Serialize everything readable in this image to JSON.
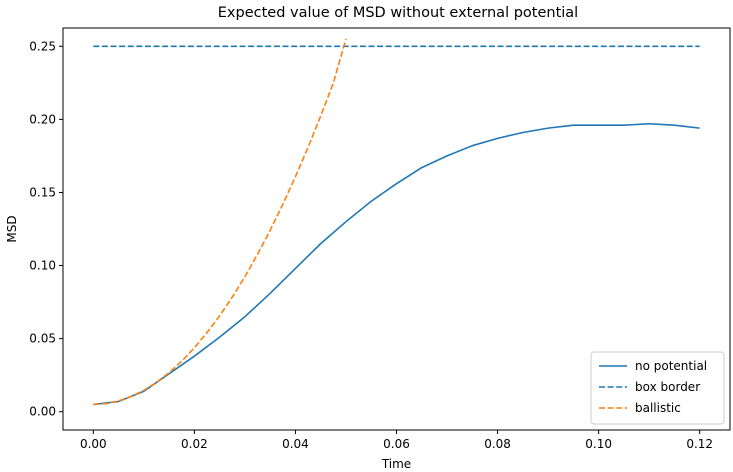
{
  "chart_data": {
    "type": "line",
    "title": "Expected value of MSD without external potential",
    "xlabel": "Time",
    "ylabel": "MSD",
    "xlim": [
      -0.006,
      0.126
    ],
    "ylim": [
      -0.0125,
      0.2625
    ],
    "xticks": [
      0.0,
      0.02,
      0.04,
      0.06,
      0.08,
      0.1,
      0.12
    ],
    "xtick_labels": [
      "0.00",
      "0.02",
      "0.04",
      "0.06",
      "0.08",
      "0.10",
      "0.12"
    ],
    "yticks": [
      0.0,
      0.05,
      0.1,
      0.15,
      0.2,
      0.25
    ],
    "ytick_labels": [
      "0.00",
      "0.05",
      "0.10",
      "0.15",
      "0.20",
      "0.25"
    ],
    "grid": false,
    "legend_position": "bottom-right",
    "series": [
      {
        "name": "no potential",
        "style": "solid",
        "color": "#1f77b4",
        "x": [
          0.0,
          0.005,
          0.01,
          0.015,
          0.02,
          0.025,
          0.03,
          0.035,
          0.04,
          0.045,
          0.05,
          0.055,
          0.06,
          0.065,
          0.07,
          0.075,
          0.08,
          0.085,
          0.09,
          0.095,
          0.1,
          0.105,
          0.11,
          0.115,
          0.12
        ],
        "y": [
          0.005,
          0.007,
          0.014,
          0.026,
          0.038,
          0.051,
          0.065,
          0.081,
          0.098,
          0.115,
          0.13,
          0.144,
          0.156,
          0.167,
          0.175,
          0.182,
          0.187,
          0.191,
          0.194,
          0.196,
          0.196,
          0.196,
          0.197,
          0.196,
          0.194
        ]
      },
      {
        "name": "box border",
        "style": "dashed",
        "color": "#1f77b4",
        "x": [
          0.0,
          0.12
        ],
        "y": [
          0.25,
          0.25
        ]
      },
      {
        "name": "ballistic",
        "style": "dashed",
        "color": "#ff7f0e",
        "x": [
          0.0,
          0.0025,
          0.005,
          0.0075,
          0.01,
          0.0125,
          0.015,
          0.0175,
          0.02,
          0.0225,
          0.025,
          0.0275,
          0.03,
          0.0325,
          0.035,
          0.0375,
          0.04,
          0.0425,
          0.045,
          0.0475,
          0.05
        ],
        "y": [
          0.005,
          0.0056,
          0.0074,
          0.0104,
          0.0146,
          0.0201,
          0.0267,
          0.0346,
          0.0437,
          0.0541,
          0.0656,
          0.0784,
          0.0924,
          0.1077,
          0.1241,
          0.1419,
          0.1608,
          0.1809,
          0.2023,
          0.2249,
          0.255
        ]
      }
    ]
  }
}
